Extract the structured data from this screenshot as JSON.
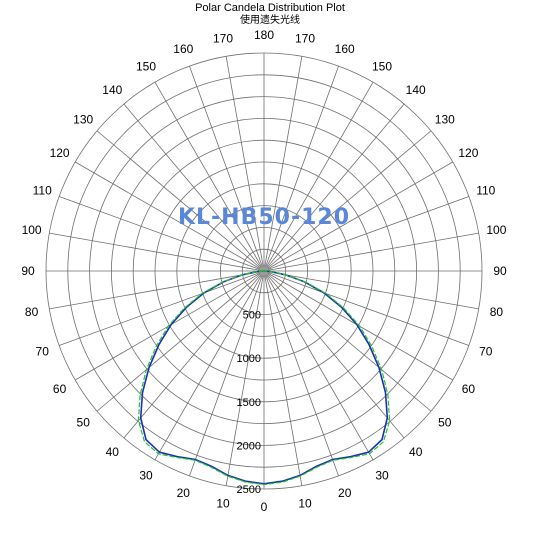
{
  "chart_data": {
    "type": "polar",
    "title": "Polar Candela Distribution Plot",
    "subtitle": "使用遗失光线",
    "watermark": "KL-HB50-120",
    "angle_step_deg": 10,
    "angle_labels": [
      "0",
      "10",
      "20",
      "30",
      "40",
      "50",
      "60",
      "70",
      "80",
      "90",
      "100",
      "110",
      "120",
      "130",
      "140",
      "150",
      "160",
      "170",
      "180"
    ],
    "radial_labels": [
      "500",
      "1000",
      "1500",
      "2000",
      "2500"
    ],
    "r_max": 2500,
    "series": [
      {
        "color": "#1a2fb8",
        "angles": [
          0,
          5,
          10,
          15,
          20,
          25,
          30,
          35,
          40,
          45,
          50,
          55,
          60,
          65,
          70,
          75,
          80,
          85,
          90
        ],
        "values": [
          2440,
          2420,
          2380,
          2320,
          2300,
          2350,
          2400,
          2360,
          2200,
          1970,
          1720,
          1470,
          1230,
          980,
          730,
          480,
          250,
          70,
          0
        ]
      },
      {
        "color": "#22c322",
        "angles": [
          0,
          5,
          10,
          15,
          20,
          25,
          30,
          35,
          40,
          45,
          50,
          55,
          60,
          65,
          70,
          75,
          80,
          85,
          90
        ],
        "values": [
          2450,
          2430,
          2390,
          2330,
          2310,
          2360,
          2420,
          2390,
          2240,
          2010,
          1760,
          1510,
          1270,
          1010,
          760,
          500,
          260,
          70,
          0
        ]
      }
    ],
    "grid_color": "#6f6f6f",
    "center_fill": "#9a9a9a"
  }
}
